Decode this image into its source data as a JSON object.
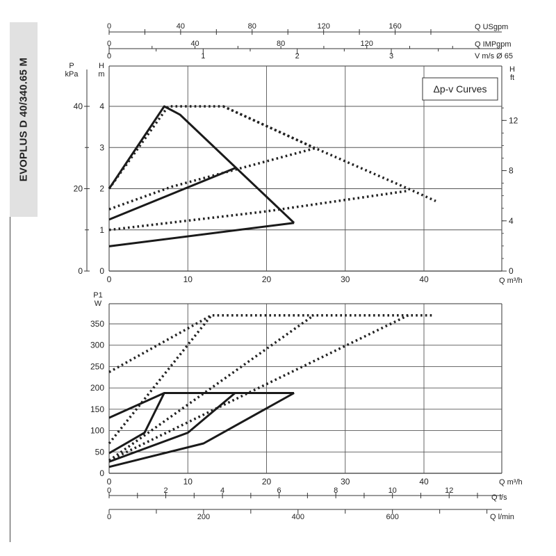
{
  "sidebar": {
    "model": "EVOPLUS D 40/340.65 M"
  },
  "chart_data": [
    {
      "type": "line",
      "title": "",
      "legend_label": "Δp-v Curves",
      "legend_placement": "top-right",
      "grid": true,
      "xlabel": "Q m³/h",
      "xlim": [
        0,
        40
      ],
      "x_ticks": [
        "0",
        "10",
        "20",
        "30",
        "40"
      ],
      "ylabel_left_1": "P",
      "ylabel_left_1_unit": "kPa",
      "y_left_1_ticks": [
        "0",
        "20",
        "40"
      ],
      "ylabel_left_2": "H",
      "ylabel_left_2_unit": "m",
      "y_left_2_ticks": [
        "0",
        "1",
        "2",
        "3",
        "4"
      ],
      "ylim": [
        0,
        4
      ],
      "ylabel_right": "H",
      "ylabel_right_unit": "ft",
      "y_right_ticks": [
        "0",
        "4",
        "8",
        "12"
      ],
      "top_axes": [
        {
          "label": "Q USgpm",
          "ticks": [
            "0",
            "40",
            "80",
            "120",
            "160"
          ]
        },
        {
          "label": "Q IMPgpm",
          "ticks": [
            "0",
            "40",
            "80",
            "120"
          ]
        },
        {
          "label": "V m/s Ø 65",
          "ticks": [
            "0",
            "1",
            "2",
            "3"
          ]
        }
      ],
      "series": [
        {
          "style": "solid",
          "x": [
            0,
            7,
            9,
            23.5
          ],
          "y": [
            2,
            4,
            3.8,
            1.17
          ]
        },
        {
          "style": "solid",
          "x": [
            0,
            16
          ],
          "y": [
            1.25,
            2.5
          ]
        },
        {
          "style": "solid",
          "x": [
            0,
            23.5
          ],
          "y": [
            0.6,
            1.17
          ]
        },
        {
          "style": "dotted",
          "x": [
            0,
            7.5,
            14.5,
            26,
            38,
            41.5
          ],
          "y": [
            2,
            4,
            4,
            3,
            2,
            1.7
          ]
        },
        {
          "style": "dotted",
          "x": [
            0,
            8,
            26.5
          ],
          "y": [
            1.5,
            2.05,
            3
          ]
        },
        {
          "style": "dotted",
          "x": [
            0,
            20,
            38
          ],
          "y": [
            1,
            1.45,
            1.95
          ]
        },
        {
          "style": "dotted",
          "x": [
            14.5,
            26
          ],
          "y": [
            4,
            3
          ]
        }
      ]
    },
    {
      "type": "line",
      "title": "",
      "grid": true,
      "xlabel": "Q m³/h",
      "xlim": [
        0,
        40
      ],
      "x_ticks": [
        "0",
        "10",
        "20",
        "30",
        "40"
      ],
      "ylabel": "P1",
      "ylabel_unit": "W",
      "ylim": [
        0,
        370
      ],
      "y_ticks": [
        "0",
        "50",
        "100",
        "150",
        "200",
        "250",
        "300",
        "350"
      ],
      "bottom_axes": [
        {
          "label": "Q l/s",
          "ticks": [
            "0",
            "2",
            "4",
            "6",
            "8",
            "10",
            "12"
          ]
        },
        {
          "label": "Q l/min",
          "ticks": [
            "0",
            "200",
            "400",
            "600"
          ]
        }
      ],
      "series": [
        {
          "style": "dotted",
          "x": [
            0,
            13,
            41
          ],
          "y": [
            237,
            370,
            370
          ]
        },
        {
          "style": "dotted",
          "x": [
            0,
            13
          ],
          "y": [
            70,
            370
          ]
        },
        {
          "style": "dotted",
          "x": [
            0,
            26
          ],
          "y": [
            30,
            370
          ]
        },
        {
          "style": "dotted",
          "x": [
            0,
            38
          ],
          "y": [
            30,
            370
          ]
        },
        {
          "style": "solid",
          "x": [
            0,
            7,
            23.5
          ],
          "y": [
            130,
            188,
            188
          ]
        },
        {
          "style": "solid",
          "x": [
            0,
            4.5,
            7
          ],
          "y": [
            47,
            95,
            188
          ]
        },
        {
          "style": "solid",
          "x": [
            0,
            10,
            16
          ],
          "y": [
            27,
            95,
            188
          ]
        },
        {
          "style": "solid",
          "x": [
            0,
            12,
            23.5
          ],
          "y": [
            15,
            70,
            188
          ]
        }
      ]
    }
  ]
}
